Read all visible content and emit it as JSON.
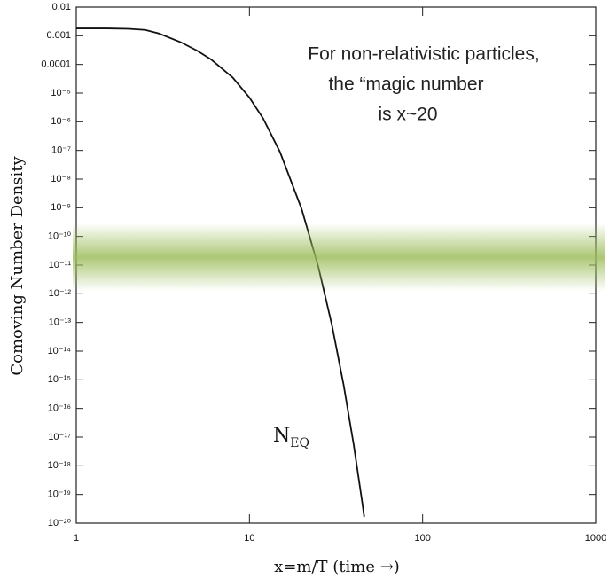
{
  "chart_data": {
    "type": "line",
    "xlabel": "x=m/T (time →)",
    "ylabel": "Comoving Number Density",
    "x": [
      1,
      1.5,
      2,
      2.5,
      3,
      4,
      5,
      6,
      8,
      10,
      12,
      15,
      20,
      25,
      30,
      35,
      40,
      45,
      46
    ],
    "values": [
      0.0018,
      0.0018,
      0.00175,
      0.0016,
      0.0012,
      0.0006,
      0.0003,
      0.00015,
      3.5e-05,
      7e-06,
      1.3e-06,
      8.9e-08,
      9.2e-10,
      8.7e-12,
      7.7e-14,
      6.5e-16,
      5.4e-18,
      4.4e-20,
      1.65e-20
    ],
    "color": "#111111",
    "xscale": "log",
    "yscale": "log",
    "xlim": [
      1,
      1000
    ],
    "ylim": [
      1e-20,
      0.01
    ],
    "xticks": [
      1,
      10,
      100,
      1000
    ],
    "yticks": [
      0.01,
      0.001,
      0.0001,
      {
        "value": 1e-05,
        "label": "10⁻⁵"
      },
      {
        "value": 1e-06,
        "label": "10⁻⁶"
      },
      {
        "value": 1e-07,
        "label": "10⁻⁷"
      },
      {
        "value": 1e-08,
        "label": "10⁻⁸"
      },
      {
        "value": 1e-09,
        "label": "10⁻⁹"
      },
      {
        "value": 1e-10,
        "label": "10⁻¹⁰"
      },
      {
        "value": 1e-11,
        "label": "10⁻¹¹"
      },
      {
        "value": 1e-12,
        "label": "10⁻¹²"
      },
      {
        "value": 1e-13,
        "label": "10⁻¹³"
      },
      {
        "value": 1e-14,
        "label": "10⁻¹⁴"
      },
      {
        "value": 1e-15,
        "label": "10⁻¹⁵"
      },
      {
        "value": 1e-16,
        "label": "10⁻¹⁶"
      },
      {
        "value": 1e-17,
        "label": "10⁻¹⁷"
      },
      {
        "value": 1e-18,
        "label": "10⁻¹⁸"
      },
      {
        "value": 1e-19,
        "label": "10⁻¹⁹"
      },
      {
        "value": 1e-20,
        "label": "10⁻²⁰"
      }
    ],
    "curve_label": {
      "text": "N",
      "subscript": "EQ"
    },
    "annotation": [
      "For non-relativistic particles,",
      "the “magic number",
      "is x~20"
    ]
  }
}
